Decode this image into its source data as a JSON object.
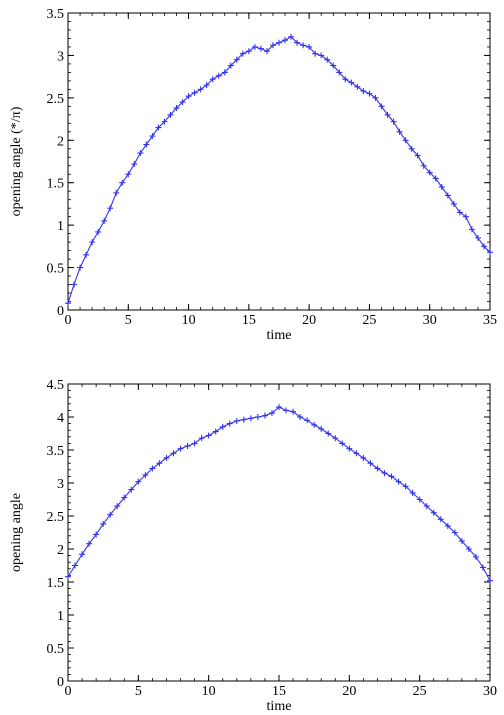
{
  "chart_data": [
    {
      "type": "line",
      "title": "",
      "xlabel": "time",
      "ylabel": "opening angle (*/π)",
      "xlim": [
        0,
        35
      ],
      "ylim": [
        0,
        3.5
      ],
      "xticks": [
        0,
        5,
        10,
        15,
        20,
        25,
        30,
        35
      ],
      "yticks": [
        0,
        0.5,
        1,
        1.5,
        2,
        2.5,
        3,
        3.5
      ],
      "xtick_labels": [
        "0",
        "5",
        "10",
        "15",
        "20",
        "25",
        "30",
        "35"
      ],
      "ytick_labels": [
        "0",
        "0.5",
        "1",
        "1.5",
        "2",
        "2.5",
        "3",
        "3.5"
      ],
      "grid": false,
      "legend": false,
      "marker": "plus",
      "color": "#3333ee",
      "series": [
        {
          "x": [
            0,
            0.5,
            1,
            1.5,
            2,
            2.5,
            3,
            3.5,
            4,
            4.5,
            5,
            5.5,
            6,
            6.5,
            7,
            7.5,
            8,
            8.5,
            9,
            9.5,
            10,
            10.5,
            11,
            11.5,
            12,
            12.5,
            13,
            13.5,
            14,
            14.5,
            15,
            15.5,
            16,
            16.5,
            17,
            17.5,
            18,
            18.5,
            19,
            19.5,
            20,
            20.5,
            21,
            21.5,
            22,
            22.5,
            23,
            23.5,
            24,
            24.5,
            25,
            25.5,
            26,
            26.5,
            27,
            27.5,
            28,
            28.5,
            29,
            29.5,
            30,
            30.5,
            31,
            31.5,
            32,
            32.5,
            33,
            33.5,
            34,
            34.5,
            35
          ],
          "y": [
            0.08,
            0.3,
            0.5,
            0.65,
            0.8,
            0.92,
            1.05,
            1.2,
            1.38,
            1.5,
            1.6,
            1.72,
            1.85,
            1.95,
            2.05,
            2.15,
            2.22,
            2.3,
            2.38,
            2.45,
            2.52,
            2.56,
            2.6,
            2.65,
            2.72,
            2.76,
            2.8,
            2.88,
            2.95,
            3.02,
            3.05,
            3.1,
            3.08,
            3.05,
            3.12,
            3.15,
            3.18,
            3.22,
            3.15,
            3.12,
            3.1,
            3.02,
            3.0,
            2.95,
            2.88,
            2.8,
            2.72,
            2.68,
            2.63,
            2.58,
            2.55,
            2.5,
            2.4,
            2.3,
            2.22,
            2.1,
            2.0,
            1.9,
            1.82,
            1.7,
            1.62,
            1.55,
            1.45,
            1.35,
            1.25,
            1.15,
            1.1,
            0.95,
            0.85,
            0.75,
            0.68
          ]
        }
      ]
    },
    {
      "type": "line",
      "title": "",
      "xlabel": "time",
      "ylabel": "opening angle",
      "xlim": [
        0,
        30
      ],
      "ylim": [
        0,
        4.5
      ],
      "xticks": [
        0,
        5,
        10,
        15,
        20,
        25,
        30
      ],
      "yticks": [
        0,
        0.5,
        1,
        1.5,
        2,
        2.5,
        3,
        3.5,
        4,
        4.5
      ],
      "xtick_labels": [
        "0",
        "5",
        "10",
        "15",
        "20",
        "25",
        "30"
      ],
      "ytick_labels": [
        "0",
        "0.5",
        "1",
        "1.5",
        "2",
        "2.5",
        "3",
        "3.5",
        "4",
        "4.5"
      ],
      "grid": false,
      "legend": false,
      "marker": "plus",
      "color": "#3333ee",
      "series": [
        {
          "x": [
            0,
            0.5,
            1,
            1.5,
            2,
            2.5,
            3,
            3.5,
            4,
            4.5,
            5,
            5.5,
            6,
            6.5,
            7,
            7.5,
            8,
            8.5,
            9,
            9.5,
            10,
            10.5,
            11,
            11.5,
            12,
            12.5,
            13,
            13.5,
            14,
            14.5,
            15,
            15.5,
            16,
            16.5,
            17,
            17.5,
            18,
            18.5,
            19,
            19.5,
            20,
            20.5,
            21,
            21.5,
            22,
            22.5,
            23,
            23.5,
            24,
            24.5,
            25,
            25.5,
            26,
            26.5,
            27,
            27.5,
            28,
            28.5,
            29,
            29.5,
            30
          ],
          "y": [
            1.58,
            1.75,
            1.92,
            2.08,
            2.22,
            2.38,
            2.52,
            2.65,
            2.78,
            2.9,
            3.02,
            3.12,
            3.22,
            3.3,
            3.38,
            3.45,
            3.52,
            3.56,
            3.6,
            3.68,
            3.72,
            3.78,
            3.85,
            3.9,
            3.94,
            3.96,
            3.98,
            4.0,
            4.02,
            4.06,
            4.15,
            4.1,
            4.08,
            4.0,
            3.95,
            3.88,
            3.82,
            3.75,
            3.68,
            3.6,
            3.52,
            3.45,
            3.38,
            3.3,
            3.22,
            3.15,
            3.1,
            3.02,
            2.95,
            2.85,
            2.75,
            2.65,
            2.55,
            2.45,
            2.35,
            2.25,
            2.12,
            2.0,
            1.88,
            1.72,
            1.52
          ]
        }
      ]
    }
  ]
}
